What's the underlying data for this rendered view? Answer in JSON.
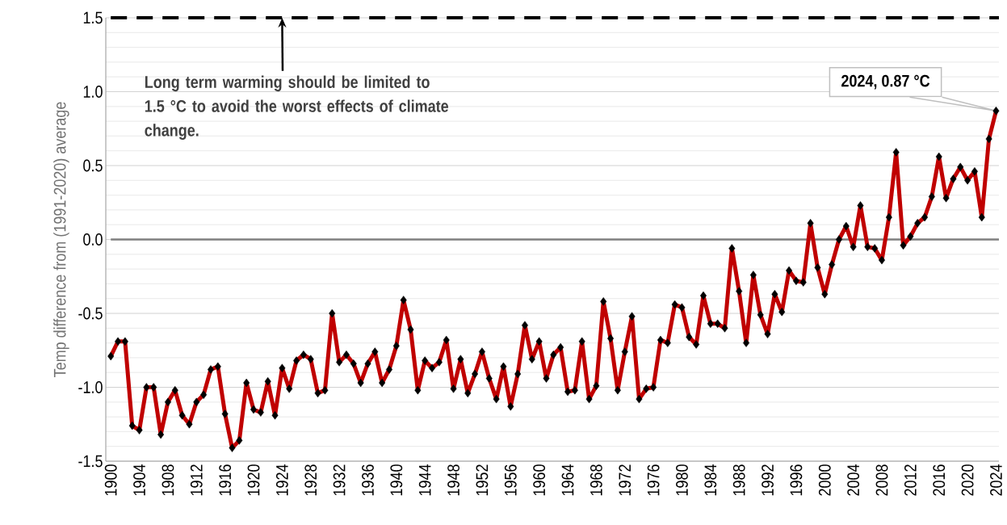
{
  "chart_data": {
    "type": "line",
    "ylabel": "Temp difference from (1991-2020) average",
    "x": [
      1900,
      1901,
      1902,
      1903,
      1904,
      1905,
      1906,
      1907,
      1908,
      1909,
      1910,
      1911,
      1912,
      1913,
      1914,
      1915,
      1916,
      1917,
      1918,
      1919,
      1920,
      1921,
      1922,
      1923,
      1924,
      1925,
      1926,
      1927,
      1928,
      1929,
      1930,
      1931,
      1932,
      1933,
      1934,
      1935,
      1936,
      1937,
      1938,
      1939,
      1940,
      1941,
      1942,
      1943,
      1944,
      1945,
      1946,
      1947,
      1948,
      1949,
      1950,
      1951,
      1952,
      1953,
      1954,
      1955,
      1956,
      1957,
      1958,
      1959,
      1960,
      1961,
      1962,
      1963,
      1964,
      1965,
      1966,
      1967,
      1968,
      1969,
      1970,
      1971,
      1972,
      1973,
      1974,
      1975,
      1976,
      1977,
      1978,
      1979,
      1980,
      1981,
      1982,
      1983,
      1984,
      1985,
      1986,
      1987,
      1988,
      1989,
      1990,
      1991,
      1992,
      1993,
      1994,
      1995,
      1996,
      1997,
      1998,
      1999,
      2000,
      2001,
      2002,
      2003,
      2004,
      2005,
      2006,
      2007,
      2008,
      2009,
      2010,
      2011,
      2012,
      2013,
      2014,
      2015,
      2016,
      2017,
      2018,
      2019,
      2020,
      2021,
      2022,
      2023,
      2024
    ],
    "series": [
      {
        "color": "#c00000",
        "values": [
          -0.79,
          -0.69,
          -0.69,
          -1.26,
          -1.29,
          -1.0,
          -1.0,
          -1.32,
          -1.1,
          -1.02,
          -1.19,
          -1.25,
          -1.1,
          -1.05,
          -0.88,
          -0.86,
          -1.18,
          -1.41,
          -1.36,
          -0.97,
          -1.15,
          -1.17,
          -0.96,
          -1.19,
          -0.87,
          -1.01,
          -0.82,
          -0.78,
          -0.81,
          -1.04,
          -1.02,
          -0.5,
          -0.83,
          -0.78,
          -0.84,
          -0.97,
          -0.84,
          -0.76,
          -0.97,
          -0.88,
          -0.72,
          -0.41,
          -0.61,
          -1.02,
          -0.82,
          -0.87,
          -0.83,
          -0.68,
          -1.01,
          -0.81,
          -1.04,
          -0.91,
          -0.76,
          -0.94,
          -1.08,
          -0.86,
          -1.13,
          -0.91,
          -0.58,
          -0.81,
          -0.69,
          -0.94,
          -0.78,
          -0.73,
          -1.03,
          -1.02,
          -0.69,
          -1.08,
          -0.99,
          -0.42,
          -0.67,
          -1.02,
          -0.76,
          -0.52,
          -1.08,
          -1.01,
          -1.0,
          -0.68,
          -0.7,
          -0.44,
          -0.46,
          -0.66,
          -0.71,
          -0.38,
          -0.57,
          -0.57,
          -0.6,
          -0.06,
          -0.35,
          -0.7,
          -0.24,
          -0.51,
          -0.64,
          -0.37,
          -0.49,
          -0.21,
          -0.28,
          -0.29,
          0.11,
          -0.19,
          -0.37,
          -0.17,
          0.0,
          0.09,
          -0.05,
          0.23,
          -0.05,
          -0.06,
          -0.14,
          0.15,
          0.59,
          -0.04,
          0.02,
          0.11,
          0.15,
          0.29,
          0.56,
          0.28,
          0.41,
          0.49,
          0.4,
          0.46,
          0.15,
          0.68,
          0.87
        ]
      }
    ],
    "xlim": [
      1899.3,
      2024.4
    ],
    "xticks": [
      1900,
      1904,
      1908,
      1912,
      1916,
      1920,
      1924,
      1928,
      1932,
      1936,
      1940,
      1944,
      1948,
      1952,
      1956,
      1960,
      1964,
      1968,
      1972,
      1976,
      1980,
      1984,
      1988,
      1992,
      1996,
      2000,
      2004,
      2008,
      2012,
      2016,
      2020,
      2024
    ],
    "ylim": [
      -1.5,
      1.5
    ],
    "yticks": [
      {
        "value": -1.5,
        "label": "-1.5"
      },
      {
        "value": -1.4,
        "label": null
      },
      {
        "value": -1.3,
        "label": null
      },
      {
        "value": -1.2,
        "label": null
      },
      {
        "value": -1.1,
        "label": null
      },
      {
        "value": -1.0,
        "label": "-1.0"
      },
      {
        "value": -0.9,
        "label": null
      },
      {
        "value": -0.8,
        "label": null
      },
      {
        "value": -0.7,
        "label": null
      },
      {
        "value": -0.6,
        "label": null
      },
      {
        "value": -0.5,
        "label": "-0.5"
      },
      {
        "value": -0.4,
        "label": null
      },
      {
        "value": -0.3,
        "label": null
      },
      {
        "value": -0.2,
        "label": null
      },
      {
        "value": -0.1,
        "label": null
      },
      {
        "value": 0.0,
        "label": "0.0"
      },
      {
        "value": 0.1,
        "label": null
      },
      {
        "value": 0.2,
        "label": null
      },
      {
        "value": 0.3,
        "label": null
      },
      {
        "value": 0.4,
        "label": null
      },
      {
        "value": 0.5,
        "label": "0.5"
      },
      {
        "value": 0.6,
        "label": null
      },
      {
        "value": 0.7,
        "label": null
      },
      {
        "value": 0.8,
        "label": null
      },
      {
        "value": 0.9,
        "label": null
      },
      {
        "value": 1.0,
        "label": "1.0"
      },
      {
        "value": 1.1,
        "label": null
      },
      {
        "value": 1.2,
        "label": null
      },
      {
        "value": 1.3,
        "label": null
      },
      {
        "value": 1.4,
        "label": null
      },
      {
        "value": 1.5,
        "label": "1.5"
      }
    ],
    "grid": "y",
    "marker": "diamond",
    "line_style": "solid",
    "ref_lines": [
      {
        "axis": "y",
        "value": 0,
        "color": "#7f7f7f",
        "line_style": "solid"
      },
      {
        "axis": "y",
        "value": 1.5,
        "color": "#000000",
        "line_style": "dashed",
        "label": "Long term warming should be limited to 1.5 °C to avoid the worst effects of climate change."
      }
    ],
    "annotations": [
      {
        "text": "2024, 0.87 °C",
        "x": 2024,
        "y": 0.87
      }
    ]
  }
}
